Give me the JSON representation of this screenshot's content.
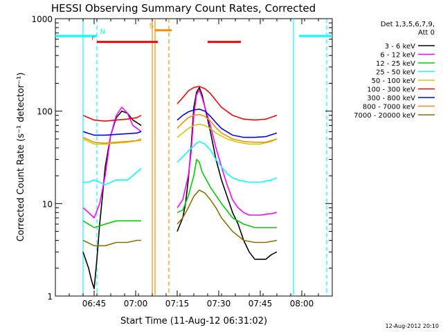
{
  "chart_data": {
    "type": "line",
    "title": "HESSI Observing Summary Count Rates, Corrected",
    "xlabel": "Start Time (11-Aug-12 06:31:02)",
    "ylabel": "Corrected Count Rate (s⁻¹ detector⁻¹)",
    "yscale": "log",
    "ylim": [
      1,
      1000
    ],
    "xlim_minutes_after_0631": [
      0,
      100
    ],
    "x_ticks": [
      {
        "label": "06:45",
        "min": 14
      },
      {
        "label": "07:00",
        "min": 29
      },
      {
        "label": "07:15",
        "min": 44
      },
      {
        "label": "07:30",
        "min": 59
      },
      {
        "label": "07:45",
        "min": 74
      },
      {
        "label": "08:00",
        "min": 89
      }
    ],
    "y_ticks": [
      {
        "label": "1",
        "value": 1
      },
      {
        "label": "10",
        "value": 10
      },
      {
        "label": "100",
        "value": 100
      },
      {
        "label": "1000",
        "value": 1000
      }
    ],
    "legend_header": [
      "Det 1,3,5,6,7,9,",
      "Att 0"
    ],
    "legend_position": "top-right",
    "series": [
      {
        "name": "3 - 6 keV",
        "color": "#000000",
        "points": [
          [
            10,
            3
          ],
          [
            12,
            2
          ],
          [
            13,
            1.5
          ],
          [
            14,
            1.2
          ],
          [
            15,
            2.5
          ],
          [
            16,
            6
          ],
          [
            17,
            12
          ],
          [
            18,
            25
          ],
          [
            20,
            55
          ],
          [
            22,
            85
          ],
          [
            24,
            100
          ],
          [
            26,
            95
          ],
          [
            28,
            80
          ],
          [
            29.5,
            75
          ],
          [
            31,
            70
          ],
          [
            35,
            null
          ],
          [
            43,
            null
          ],
          [
            44,
            5
          ],
          [
            46,
            7
          ],
          [
            47,
            10
          ],
          [
            48,
            18
          ],
          [
            49,
            40
          ],
          [
            50,
            110
          ],
          [
            51,
            160
          ],
          [
            52,
            180
          ],
          [
            53,
            150
          ],
          [
            54,
            110
          ],
          [
            56,
            60
          ],
          [
            58,
            30
          ],
          [
            60,
            18
          ],
          [
            62,
            12
          ],
          [
            64,
            8
          ],
          [
            66,
            6
          ],
          [
            68,
            4
          ],
          [
            70,
            3
          ],
          [
            72,
            2.5
          ],
          [
            74,
            2.5
          ],
          [
            76,
            2.5
          ],
          [
            78,
            2.8
          ],
          [
            80,
            3
          ]
        ]
      },
      {
        "name": "6 - 12 keV",
        "color": "#ff00ff",
        "points": [
          [
            10,
            9
          ],
          [
            12,
            8
          ],
          [
            14,
            7
          ],
          [
            16,
            10
          ],
          [
            18,
            20
          ],
          [
            20,
            55
          ],
          [
            22,
            90
          ],
          [
            24,
            110
          ],
          [
            26,
            95
          ],
          [
            28,
            70
          ],
          [
            29.5,
            65
          ],
          [
            31,
            60
          ],
          [
            35,
            null
          ],
          [
            43,
            null
          ],
          [
            44,
            9
          ],
          [
            46,
            11
          ],
          [
            48,
            20
          ],
          [
            49,
            35
          ],
          [
            50,
            90
          ],
          [
            51,
            150
          ],
          [
            52,
            170
          ],
          [
            53,
            140
          ],
          [
            54,
            110
          ],
          [
            56,
            70
          ],
          [
            58,
            40
          ],
          [
            60,
            25
          ],
          [
            62,
            16
          ],
          [
            64,
            11
          ],
          [
            66,
            9
          ],
          [
            68,
            8
          ],
          [
            70,
            7.5
          ],
          [
            74,
            7.5
          ],
          [
            78,
            7.8
          ],
          [
            80,
            8
          ]
        ]
      },
      {
        "name": "12 - 25 keV",
        "color": "#00cc00",
        "points": [
          [
            10,
            6.5
          ],
          [
            14,
            5.5
          ],
          [
            18,
            6
          ],
          [
            22,
            6.5
          ],
          [
            26,
            6.5
          ],
          [
            29.5,
            6.5
          ],
          [
            31,
            6.5
          ],
          [
            35,
            null
          ],
          [
            43,
            null
          ],
          [
            44,
            8
          ],
          [
            46,
            8.5
          ],
          [
            48,
            12
          ],
          [
            50,
            20
          ],
          [
            51,
            30
          ],
          [
            52,
            28
          ],
          [
            53,
            22
          ],
          [
            56,
            15
          ],
          [
            60,
            10
          ],
          [
            64,
            7
          ],
          [
            68,
            6
          ],
          [
            72,
            5.5
          ],
          [
            76,
            5.5
          ],
          [
            80,
            5.5
          ]
        ]
      },
      {
        "name": "25 - 50 keV",
        "color": "#00ffff",
        "points": [
          [
            10,
            17
          ],
          [
            12,
            17
          ],
          [
            14,
            18
          ],
          [
            16,
            17
          ],
          [
            18,
            16
          ],
          [
            20,
            17
          ],
          [
            22,
            18
          ],
          [
            24,
            18
          ],
          [
            26,
            18
          ],
          [
            28,
            20
          ],
          [
            29.5,
            22
          ],
          [
            31,
            24
          ],
          [
            35,
            null
          ],
          [
            43,
            null
          ],
          [
            44,
            28
          ],
          [
            46,
            32
          ],
          [
            48,
            37
          ],
          [
            50,
            42
          ],
          [
            51,
            45
          ],
          [
            52,
            47
          ],
          [
            54,
            44
          ],
          [
            56,
            38
          ],
          [
            58,
            30
          ],
          [
            60,
            25
          ],
          [
            62,
            21
          ],
          [
            64,
            19
          ],
          [
            66,
            18
          ],
          [
            70,
            17
          ],
          [
            74,
            17
          ],
          [
            78,
            18
          ],
          [
            80,
            19
          ]
        ]
      },
      {
        "name": "50 - 100 keV",
        "color": "#cccc00",
        "points": [
          [
            10,
            50
          ],
          [
            14,
            44
          ],
          [
            18,
            44
          ],
          [
            22,
            45
          ],
          [
            26,
            46
          ],
          [
            29.5,
            48
          ],
          [
            31,
            48
          ],
          [
            35,
            null
          ],
          [
            43,
            null
          ],
          [
            44,
            52
          ],
          [
            46,
            58
          ],
          [
            48,
            65
          ],
          [
            50,
            70
          ],
          [
            52,
            72
          ],
          [
            54,
            70
          ],
          [
            56,
            65
          ],
          [
            58,
            58
          ],
          [
            62,
            50
          ],
          [
            66,
            46
          ],
          [
            70,
            44
          ],
          [
            74,
            44
          ],
          [
            78,
            47
          ],
          [
            80,
            50
          ]
        ]
      },
      {
        "name": "100 - 300 keV",
        "color": "#ff0000",
        "points": [
          [
            10,
            90
          ],
          [
            14,
            80
          ],
          [
            18,
            78
          ],
          [
            22,
            80
          ],
          [
            26,
            82
          ],
          [
            29.5,
            85
          ],
          [
            31,
            90
          ],
          [
            35,
            null
          ],
          [
            43,
            null
          ],
          [
            44,
            120
          ],
          [
            46,
            140
          ],
          [
            48,
            165
          ],
          [
            50,
            180
          ],
          [
            52,
            185
          ],
          [
            54,
            175
          ],
          [
            56,
            155
          ],
          [
            58,
            130
          ],
          [
            60,
            110
          ],
          [
            64,
            90
          ],
          [
            68,
            82
          ],
          [
            72,
            80
          ],
          [
            76,
            82
          ],
          [
            80,
            90
          ]
        ]
      },
      {
        "name": "300 - 800 keV",
        "color": "#0000ff",
        "points": [
          [
            10,
            60
          ],
          [
            14,
            55
          ],
          [
            18,
            55
          ],
          [
            22,
            56
          ],
          [
            26,
            57
          ],
          [
            29.5,
            58
          ],
          [
            31,
            60
          ],
          [
            35,
            null
          ],
          [
            43,
            null
          ],
          [
            44,
            80
          ],
          [
            46,
            90
          ],
          [
            48,
            98
          ],
          [
            50,
            103
          ],
          [
            52,
            105
          ],
          [
            54,
            100
          ],
          [
            56,
            88
          ],
          [
            58,
            75
          ],
          [
            60,
            65
          ],
          [
            64,
            55
          ],
          [
            68,
            52
          ],
          [
            72,
            52
          ],
          [
            76,
            53
          ],
          [
            80,
            58
          ]
        ]
      },
      {
        "name": "800 - 7000 keV",
        "color": "#ff8c00",
        "points": [
          [
            10,
            52
          ],
          [
            14,
            46
          ],
          [
            18,
            45
          ],
          [
            22,
            46
          ],
          [
            26,
            47
          ],
          [
            29.5,
            48
          ],
          [
            31,
            50
          ],
          [
            35,
            null
          ],
          [
            43,
            null
          ],
          [
            44,
            65
          ],
          [
            46,
            75
          ],
          [
            48,
            85
          ],
          [
            50,
            90
          ],
          [
            52,
            92
          ],
          [
            54,
            88
          ],
          [
            56,
            78
          ],
          [
            58,
            66
          ],
          [
            60,
            58
          ],
          [
            64,
            50
          ],
          [
            68,
            47
          ],
          [
            72,
            46
          ],
          [
            76,
            46
          ],
          [
            80,
            50
          ]
        ]
      },
      {
        "name": "7000 - 20000 keV",
        "color": "#8b6f00",
        "points": [
          [
            10,
            4
          ],
          [
            14,
            3.5
          ],
          [
            18,
            3.5
          ],
          [
            22,
            3.8
          ],
          [
            26,
            3.8
          ],
          [
            29.5,
            4
          ],
          [
            31,
            4
          ],
          [
            35,
            null
          ],
          [
            43,
            null
          ],
          [
            44,
            6
          ],
          [
            46,
            7
          ],
          [
            48,
            9
          ],
          [
            50,
            12
          ],
          [
            52,
            14
          ],
          [
            54,
            13
          ],
          [
            56,
            11
          ],
          [
            58,
            9
          ],
          [
            60,
            7
          ],
          [
            64,
            5
          ],
          [
            68,
            4
          ],
          [
            72,
            3.8
          ],
          [
            76,
            3.8
          ],
          [
            80,
            4
          ]
        ]
      }
    ],
    "flags": [
      {
        "label": "F",
        "color": "#ff0000",
        "y": 560,
        "segments": [
          [
            15,
            37
          ],
          [
            55,
            67
          ]
        ]
      },
      {
        "label": "S",
        "color": "#ff8c00",
        "y": 750,
        "segments": [
          [
            36,
            42
          ]
        ]
      },
      {
        "label": "N",
        "color": "#00ffff",
        "y": 650,
        "segments": [
          [
            0,
            15
          ],
          [
            88,
            100
          ]
        ]
      }
    ],
    "vlines": [
      {
        "min": 10,
        "color": "#00ffff",
        "style": "solid"
      },
      {
        "min": 15,
        "color": "#00ffff",
        "style": "dashed"
      },
      {
        "min": 35,
        "color": "#ff8c00",
        "style": "solid"
      },
      {
        "min": 36,
        "color": "#ff8c00",
        "style": "solid"
      },
      {
        "min": 41,
        "color": "#ff8c00",
        "style": "dashed"
      },
      {
        "min": 86,
        "color": "#00ffff",
        "style": "solid"
      },
      {
        "min": 98,
        "color": "#00ffff",
        "style": "dashed"
      }
    ]
  },
  "timestamp": "12-Aug-2012 20:10"
}
